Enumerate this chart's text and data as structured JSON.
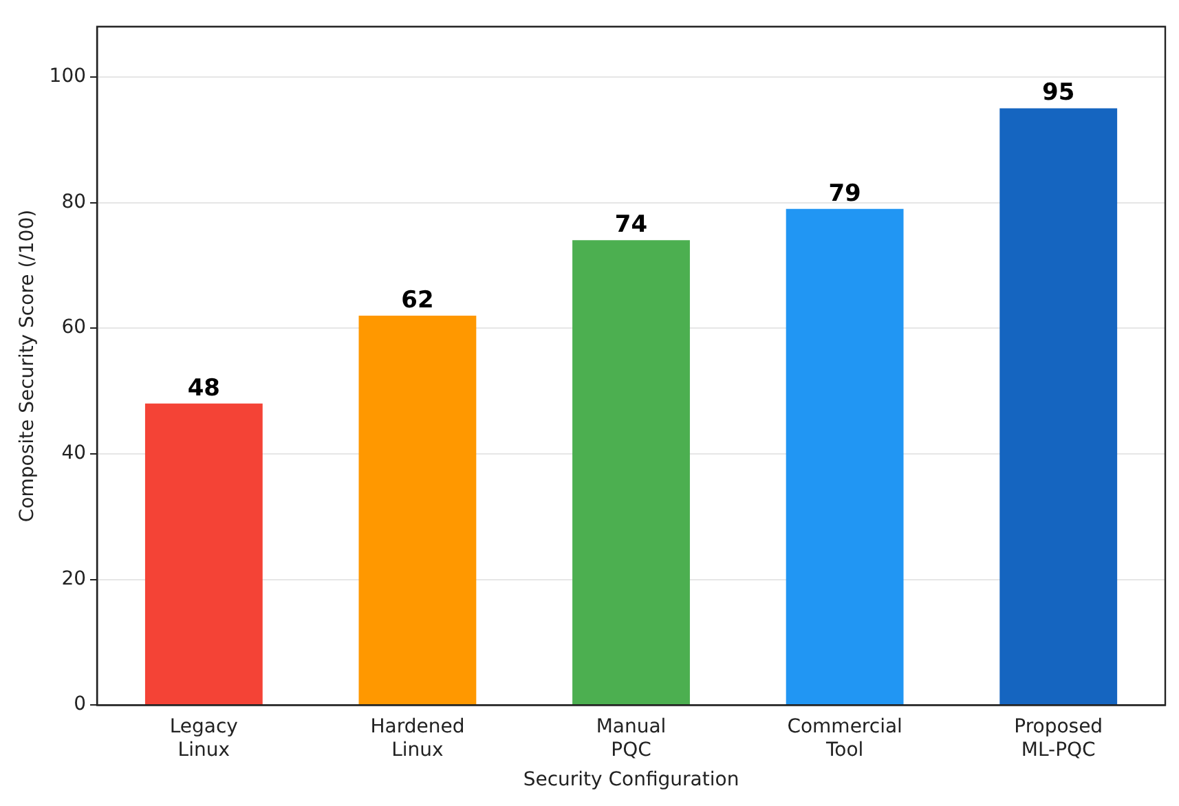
{
  "chart_data": {
    "type": "bar",
    "xlabel": "Security Configuration",
    "ylabel": "Composite Security Score (/100)",
    "categories": [
      "Legacy\nLinux",
      "Hardened\nLinux",
      "Manual\nPQC",
      "Commercial\nTool",
      "Proposed\nML-PQC"
    ],
    "values": [
      48,
      62,
      74,
      79,
      95
    ],
    "colors": [
      "#f44336",
      "#ff9800",
      "#4caf50",
      "#2196f3",
      "#1565c0"
    ],
    "ylim": [
      0,
      108
    ],
    "yticks": [
      0,
      20,
      40,
      60,
      80,
      100
    ],
    "grid": "y",
    "data_labels": true
  }
}
